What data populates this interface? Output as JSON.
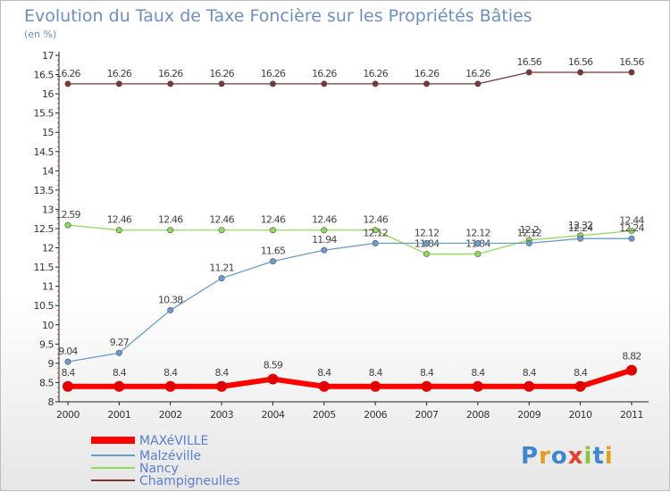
{
  "chart_data": {
    "type": "line",
    "title": "Evolution du Taux de Taxe Foncière sur les Propriétés Bâties",
    "subtitle": "(en %)",
    "ylim": [
      8,
      17
    ],
    "yticks": [
      "8",
      "8.5",
      "9",
      "9.5",
      "10",
      "10.5",
      "11",
      "11.5",
      "12",
      "12.5",
      "13",
      "13.5",
      "14",
      "14.5",
      "15",
      "15.5",
      "16",
      "16.5",
      "17"
    ],
    "categories": [
      "2000",
      "2001",
      "2002",
      "2003",
      "2004",
      "2005",
      "2006",
      "2007",
      "2008",
      "2009",
      "2010",
      "2011"
    ],
    "series": [
      {
        "name": "MAXéVILLE",
        "color": "#ff0000",
        "values": [
          8.4,
          8.4,
          8.4,
          8.4,
          8.59,
          8.4,
          8.4,
          8.4,
          8.4,
          8.4,
          8.4,
          8.82
        ],
        "labels": [
          "8.4",
          "8.4",
          "8.4",
          "8.4",
          "8.59",
          "8.4",
          "8.4",
          "8.4",
          "8.4",
          "8.4",
          "8.4",
          "8.82"
        ]
      },
      {
        "name": "Malzéville",
        "color": "#6a9ccf",
        "values": [
          9.04,
          9.27,
          10.38,
          11.21,
          11.65,
          11.94,
          12.12,
          12.12,
          12.12,
          12.12,
          12.24,
          12.24
        ],
        "labels": [
          "9.04",
          "9.27",
          "10.38",
          "11.21",
          "11.65",
          "11.94",
          "12.12",
          "12.12",
          "12.12",
          "12.12",
          "12.24",
          "12.24"
        ]
      },
      {
        "name": "Nancy",
        "color": "#8fdc5c",
        "values": [
          12.59,
          12.46,
          12.46,
          12.46,
          12.46,
          12.46,
          12.46,
          11.84,
          11.84,
          12.2,
          12.32,
          12.44
        ],
        "labels": [
          "12.59",
          "12.46",
          "12.46",
          "12.46",
          "12.46",
          "12.46",
          "12.46",
          "11.84",
          "11.84",
          "12.2",
          "12.32",
          "12.44"
        ]
      },
      {
        "name": "Champigneulles",
        "color": "#7a3535",
        "values": [
          16.26,
          16.26,
          16.26,
          16.26,
          16.26,
          16.26,
          16.26,
          16.26,
          16.26,
          16.56,
          16.56,
          16.56
        ],
        "labels": [
          "16.26",
          "16.26",
          "16.26",
          "16.26",
          "16.26",
          "16.26",
          "16.26",
          "16.26",
          "16.26",
          "16.56",
          "16.56",
          "16.56"
        ]
      }
    ],
    "legend_position": "bottom-left",
    "grid": false
  },
  "branding": {
    "logo_text": "Proxiti"
  }
}
